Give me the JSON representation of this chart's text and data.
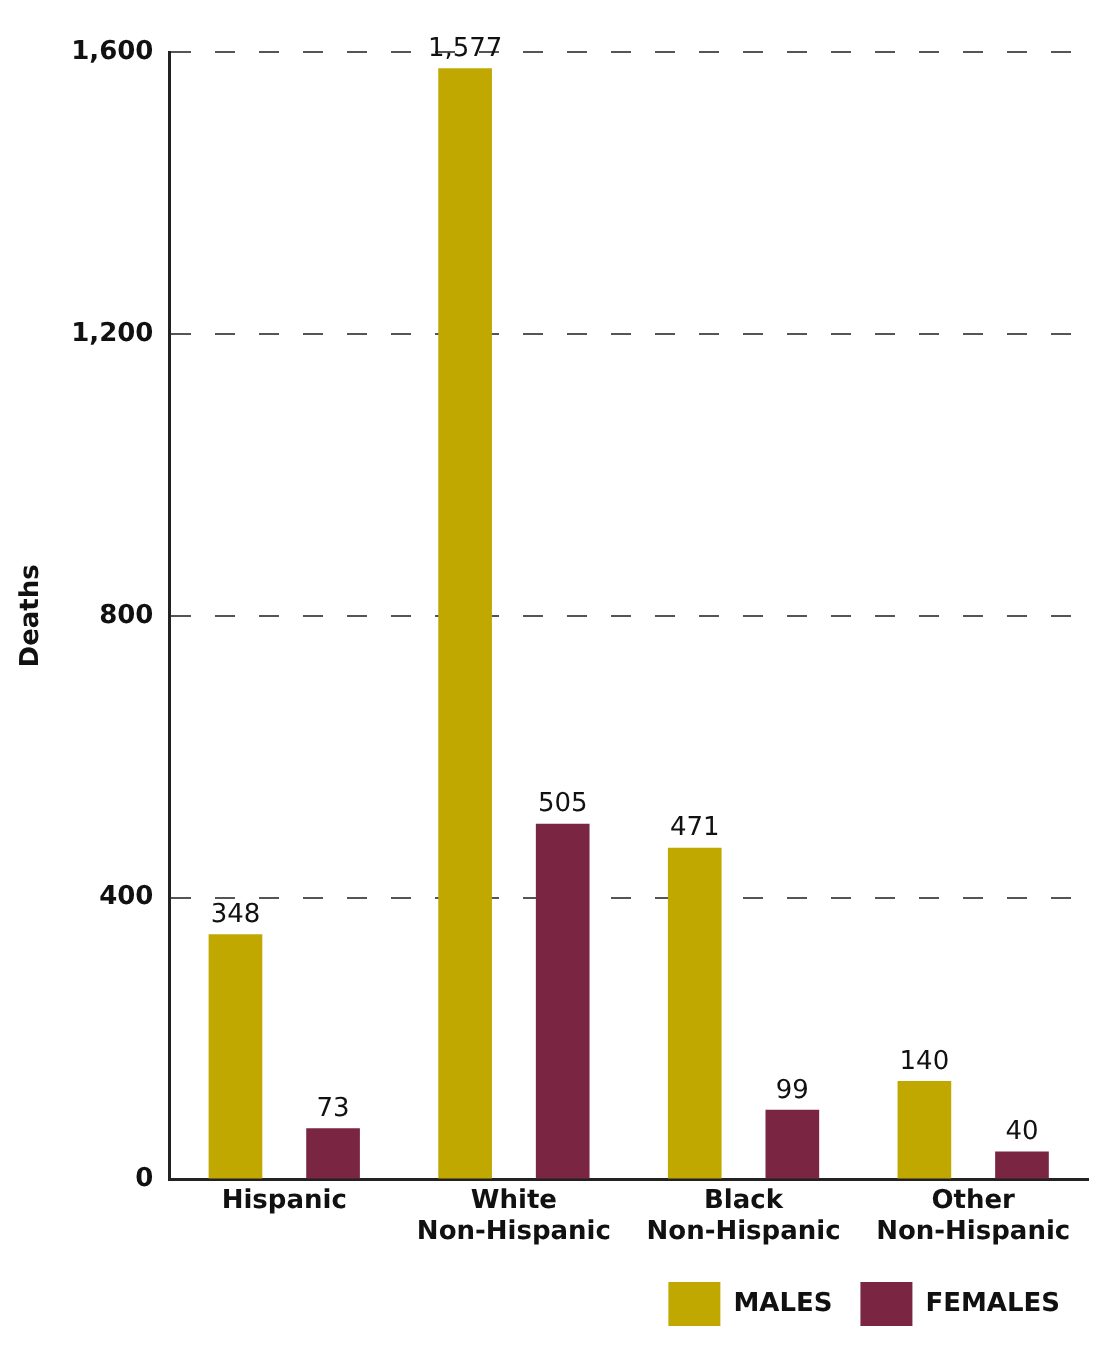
{
  "chart_data": {
    "type": "bar",
    "ylabel": "Deaths",
    "categories": [
      "Hispanic",
      "White Non-Hispanic",
      "Black Non-Hispanic",
      "Other Non-Hispanic"
    ],
    "series": [
      {
        "name": "MALES",
        "color": "#c0a800",
        "values": [
          348,
          1577,
          471,
          140
        ],
        "value_labels": [
          "348",
          "1,577",
          "471",
          "140"
        ]
      },
      {
        "name": "FEMALES",
        "color": "#7a2642",
        "values": [
          73,
          505,
          99,
          40
        ],
        "value_labels": [
          "73",
          "505",
          "99",
          "40"
        ]
      }
    ],
    "ylim": [
      0,
      1600
    ],
    "yticks": [
      {
        "value": 0,
        "label": "0"
      },
      {
        "value": 400,
        "label": "400"
      },
      {
        "value": 800,
        "label": "800"
      },
      {
        "value": 1200,
        "label": "1,200"
      },
      {
        "value": 1600,
        "label": "1,600"
      }
    ],
    "grid": "y",
    "legend": "bottom right"
  }
}
